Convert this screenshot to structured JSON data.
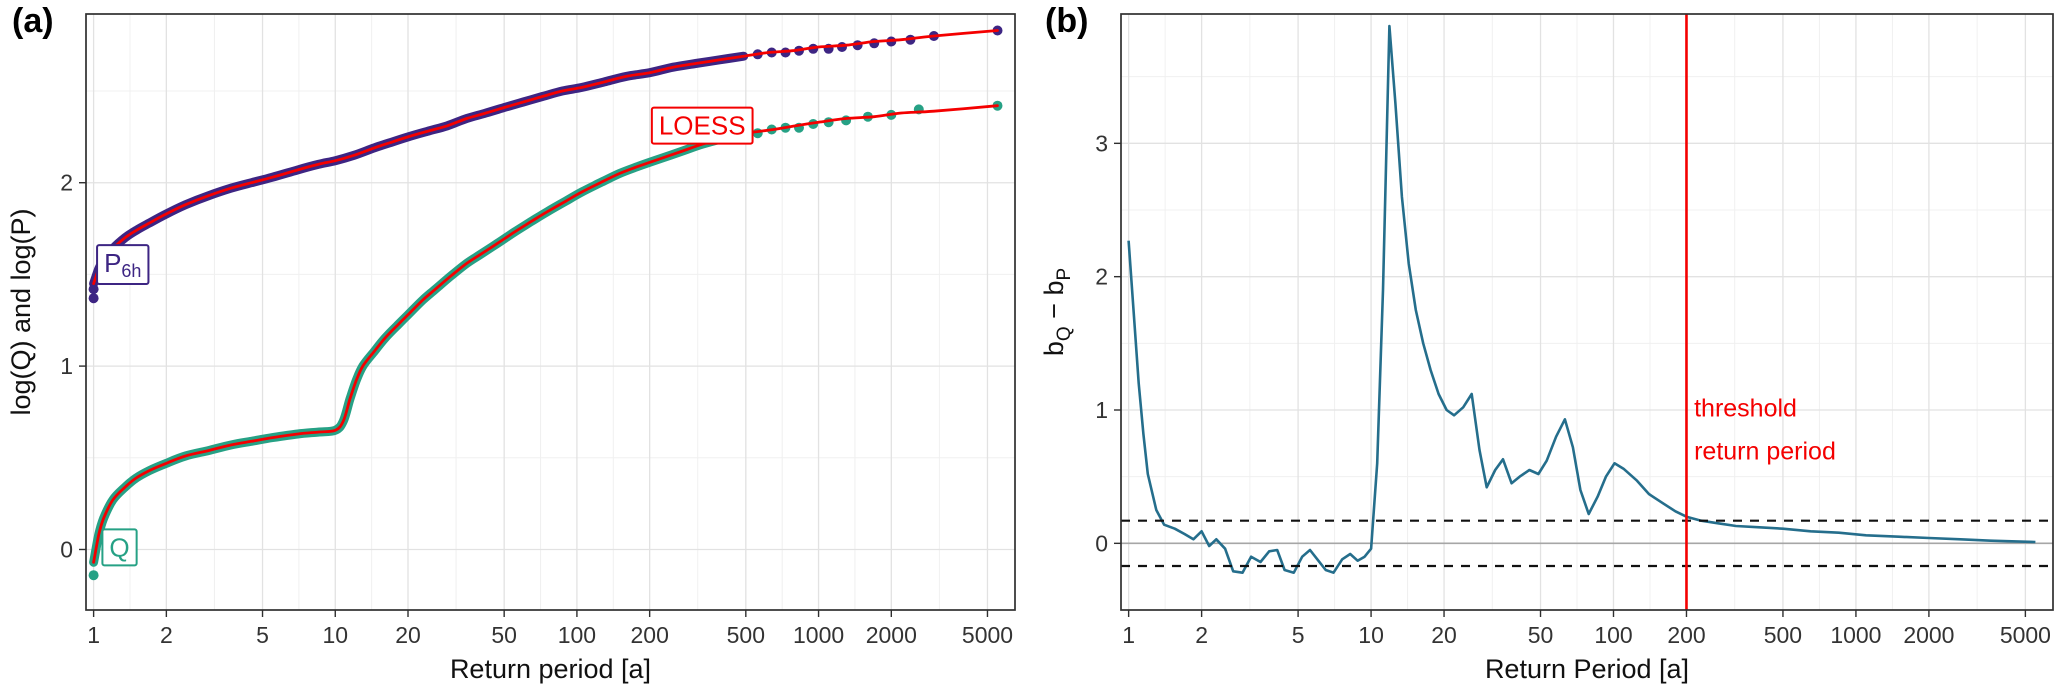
{
  "figure": {
    "background": "#ffffff"
  },
  "chart_data": [
    {
      "panel_label": "(a)",
      "type": "scatter",
      "title": "",
      "xlabel": "Return period [a]",
      "ylabel": "log(Q) and log(P)",
      "x_scale": "log10",
      "x_ticks": [
        1,
        2,
        5,
        10,
        20,
        50,
        100,
        200,
        500,
        1000,
        2000,
        5000
      ],
      "y_ticks": [
        0,
        1,
        2
      ],
      "y_minor": [
        0.5,
        1.5,
        2.5
      ],
      "x_domain": [
        0.93,
        6500
      ],
      "y_domain": [
        -0.33,
        2.92
      ],
      "grid": true,
      "loess": {
        "color": "#f40000",
        "label": "LOESS",
        "label_x": 330,
        "label_y": 2.3
      },
      "series": [
        {
          "name": "P6h",
          "label": "P",
          "label_sub": "6h",
          "label_x": 1.32,
          "label_y": 1.55,
          "color": "#3d2583",
          "band_until": 600,
          "curve": [
            [
              1,
              1.45
            ],
            [
              1.05,
              1.53
            ],
            [
              1.1,
              1.58
            ],
            [
              1.2,
              1.64
            ],
            [
              1.35,
              1.7
            ],
            [
              1.5,
              1.74
            ],
            [
              1.7,
              1.78
            ],
            [
              2,
              1.83
            ],
            [
              2.4,
              1.88
            ],
            [
              3,
              1.93
            ],
            [
              3.7,
              1.97
            ],
            [
              4.5,
              2.0
            ],
            [
              5.5,
              2.03
            ],
            [
              7,
              2.07
            ],
            [
              8.5,
              2.1
            ],
            [
              10,
              2.12
            ],
            [
              12,
              2.15
            ],
            [
              14.5,
              2.19
            ],
            [
              17,
              2.22
            ],
            [
              20,
              2.25
            ],
            [
              24,
              2.28
            ],
            [
              29,
              2.31
            ],
            [
              35,
              2.35
            ],
            [
              42,
              2.38
            ],
            [
              50,
              2.41
            ],
            [
              60,
              2.44
            ],
            [
              72,
              2.47
            ],
            [
              87,
              2.5
            ],
            [
              105,
              2.52
            ],
            [
              130,
              2.55
            ],
            [
              160,
              2.58
            ],
            [
              200,
              2.6
            ],
            [
              250,
              2.63
            ],
            [
              310,
              2.65
            ],
            [
              390,
              2.67
            ],
            [
              490,
              2.69
            ],
            [
              620,
              2.71
            ],
            [
              780,
              2.72
            ],
            [
              1000,
              2.74
            ],
            [
              1300,
              2.75
            ],
            [
              1700,
              2.77
            ],
            [
              2200,
              2.78
            ],
            [
              3000,
              2.8
            ],
            [
              5500,
              2.83
            ]
          ],
          "points": [
            [
              1,
              1.37
            ],
            [
              1,
              1.42
            ],
            [
              560,
              2.7
            ],
            [
              640,
              2.71
            ],
            [
              730,
              2.71
            ],
            [
              830,
              2.72
            ],
            [
              950,
              2.73
            ],
            [
              1100,
              2.73
            ],
            [
              1250,
              2.74
            ],
            [
              1450,
              2.75
            ],
            [
              1700,
              2.76
            ],
            [
              2000,
              2.77
            ],
            [
              2400,
              2.78
            ],
            [
              3000,
              2.8
            ],
            [
              5500,
              2.83
            ]
          ]
        },
        {
          "name": "Q",
          "label": "Q",
          "label_sub": "",
          "label_x": 1.28,
          "label_y": 0.0,
          "color": "#26a185",
          "band_until": 600,
          "curve": [
            [
              1,
              -0.07
            ],
            [
              1.05,
              0.08
            ],
            [
              1.1,
              0.17
            ],
            [
              1.2,
              0.27
            ],
            [
              1.35,
              0.34
            ],
            [
              1.5,
              0.39
            ],
            [
              1.7,
              0.43
            ],
            [
              2,
              0.47
            ],
            [
              2.4,
              0.51
            ],
            [
              3,
              0.54
            ],
            [
              3.7,
              0.57
            ],
            [
              4.5,
              0.59
            ],
            [
              5.5,
              0.61
            ],
            [
              7,
              0.63
            ],
            [
              8.5,
              0.64
            ],
            [
              10,
              0.65
            ],
            [
              10.8,
              0.7
            ],
            [
              11.5,
              0.82
            ],
            [
              12.2,
              0.92
            ],
            [
              13,
              1.0
            ],
            [
              14.5,
              1.08
            ],
            [
              16,
              1.15
            ],
            [
              18,
              1.22
            ],
            [
              20,
              1.28
            ],
            [
              23,
              1.36
            ],
            [
              26,
              1.42
            ],
            [
              30,
              1.49
            ],
            [
              35,
              1.56
            ],
            [
              40,
              1.61
            ],
            [
              47,
              1.67
            ],
            [
              55,
              1.73
            ],
            [
              65,
              1.79
            ],
            [
              75,
              1.84
            ],
            [
              90,
              1.9
            ],
            [
              105,
              1.95
            ],
            [
              125,
              2.0
            ],
            [
              150,
              2.05
            ],
            [
              180,
              2.09
            ],
            [
              220,
              2.13
            ],
            [
              270,
              2.17
            ],
            [
              330,
              2.21
            ],
            [
              400,
              2.24
            ],
            [
              500,
              2.27
            ],
            [
              650,
              2.29
            ],
            [
              800,
              2.31
            ],
            [
              1000,
              2.33
            ],
            [
              1300,
              2.35
            ],
            [
              1700,
              2.36
            ],
            [
              2200,
              2.38
            ],
            [
              3000,
              2.39
            ],
            [
              5500,
              2.42
            ]
          ],
          "points": [
            [
              1,
              -0.14
            ],
            [
              560,
              2.27
            ],
            [
              640,
              2.29
            ],
            [
              730,
              2.3
            ],
            [
              830,
              2.3
            ],
            [
              950,
              2.32
            ],
            [
              1100,
              2.33
            ],
            [
              1300,
              2.34
            ],
            [
              1600,
              2.36
            ],
            [
              2000,
              2.37
            ],
            [
              2600,
              2.4
            ],
            [
              5500,
              2.42
            ]
          ]
        }
      ]
    },
    {
      "panel_label": "(b)",
      "type": "line",
      "title": "",
      "xlabel": "Return Period [a]",
      "ylabel": "b_Q − b_P",
      "ylabel_parts": [
        {
          "t": "b",
          "sub": false
        },
        {
          "t": "Q",
          "sub": true
        },
        {
          "t": " − b",
          "sub": false
        },
        {
          "t": "P",
          "sub": true
        }
      ],
      "x_scale": "log10",
      "x_ticks": [
        1,
        2,
        5,
        10,
        20,
        50,
        100,
        200,
        500,
        1000,
        2000,
        5000
      ],
      "y_ticks": [
        0,
        1,
        2,
        3
      ],
      "y_minor": [
        0.5,
        1.5,
        2.5,
        3.5
      ],
      "x_domain": [
        0.93,
        6500
      ],
      "y_domain": [
        -0.5,
        3.97
      ],
      "grid": true,
      "line_color": "#256e8c",
      "zero_line_y": 0,
      "threshold_lines": [
        0.17,
        -0.17
      ],
      "vline_x": 200,
      "annotation_color": "#f40000",
      "annotations": [
        {
          "text": "threshold",
          "x": 215,
          "y": 0.95
        },
        {
          "text": "return period",
          "x": 215,
          "y": 0.63
        }
      ],
      "line": [
        [
          1,
          2.27
        ],
        [
          1.05,
          1.72
        ],
        [
          1.1,
          1.2
        ],
        [
          1.15,
          0.82
        ],
        [
          1.2,
          0.52
        ],
        [
          1.3,
          0.25
        ],
        [
          1.4,
          0.14
        ],
        [
          1.55,
          0.11
        ],
        [
          1.7,
          0.07
        ],
        [
          1.85,
          0.03
        ],
        [
          2.0,
          0.09
        ],
        [
          2.15,
          -0.02
        ],
        [
          2.3,
          0.03
        ],
        [
          2.5,
          -0.04
        ],
        [
          2.7,
          -0.21
        ],
        [
          2.95,
          -0.22
        ],
        [
          3.2,
          -0.1
        ],
        [
          3.5,
          -0.14
        ],
        [
          3.8,
          -0.06
        ],
        [
          4.1,
          -0.05
        ],
        [
          4.4,
          -0.2
        ],
        [
          4.8,
          -0.22
        ],
        [
          5.2,
          -0.1
        ],
        [
          5.6,
          -0.05
        ],
        [
          6.0,
          -0.12
        ],
        [
          6.5,
          -0.2
        ],
        [
          7.0,
          -0.22
        ],
        [
          7.6,
          -0.12
        ],
        [
          8.2,
          -0.08
        ],
        [
          8.8,
          -0.13
        ],
        [
          9.4,
          -0.1
        ],
        [
          10.0,
          -0.04
        ],
        [
          10.6,
          0.6
        ],
        [
          11.2,
          1.9
        ],
        [
          11.9,
          3.88
        ],
        [
          12.6,
          3.3
        ],
        [
          13.4,
          2.6
        ],
        [
          14.3,
          2.1
        ],
        [
          15.3,
          1.75
        ],
        [
          16.4,
          1.5
        ],
        [
          17.6,
          1.3
        ],
        [
          19,
          1.12
        ],
        [
          20.5,
          1.0
        ],
        [
          22,
          0.96
        ],
        [
          24,
          1.02
        ],
        [
          26,
          1.12
        ],
        [
          28,
          0.7
        ],
        [
          30,
          0.42
        ],
        [
          32.5,
          0.55
        ],
        [
          35,
          0.63
        ],
        [
          38,
          0.45
        ],
        [
          41,
          0.5
        ],
        [
          45,
          0.55
        ],
        [
          49,
          0.52
        ],
        [
          53,
          0.62
        ],
        [
          58,
          0.8
        ],
        [
          63,
          0.93
        ],
        [
          68,
          0.72
        ],
        [
          73,
          0.4
        ],
        [
          79,
          0.22
        ],
        [
          86,
          0.35
        ],
        [
          93,
          0.5
        ],
        [
          101,
          0.6
        ],
        [
          110,
          0.56
        ],
        [
          125,
          0.47
        ],
        [
          140,
          0.37
        ],
        [
          160,
          0.3
        ],
        [
          180,
          0.24
        ],
        [
          200,
          0.2
        ],
        [
          230,
          0.17
        ],
        [
          270,
          0.15
        ],
        [
          320,
          0.13
        ],
        [
          400,
          0.12
        ],
        [
          500,
          0.11
        ],
        [
          650,
          0.09
        ],
        [
          850,
          0.08
        ],
        [
          1100,
          0.06
        ],
        [
          1500,
          0.05
        ],
        [
          2000,
          0.04
        ],
        [
          2700,
          0.03
        ],
        [
          3600,
          0.02
        ],
        [
          5500,
          0.01
        ]
      ]
    }
  ]
}
